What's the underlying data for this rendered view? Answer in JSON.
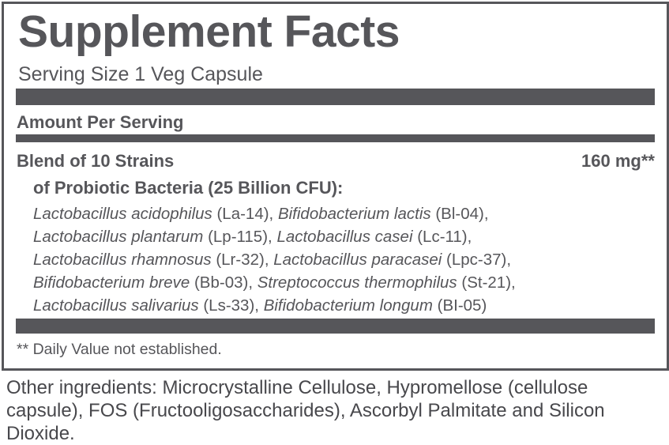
{
  "title": "Supplement Facts",
  "serving_size": "Serving Size 1 Veg Capsule",
  "amount_header": "Amount Per Serving",
  "blend": {
    "name": "Blend of 10 Strains",
    "amount": "160 mg**",
    "subtitle": "of Probiotic Bacteria (25 Billion CFU):"
  },
  "strain_lines": [
    [
      {
        "t": "Lactobacillus acidophilus",
        "i": true
      },
      {
        "t": " (La-14), ",
        "i": false
      },
      {
        "t": "Bifidobacterium lactis",
        "i": true
      },
      {
        "t": " (Bl-04),",
        "i": false
      }
    ],
    [
      {
        "t": "Lactobacillus plantarum",
        "i": true
      },
      {
        "t": " (Lp-115), ",
        "i": false
      },
      {
        "t": "Lactobacillus casei",
        "i": true
      },
      {
        "t": " (Lc-11),",
        "i": false
      }
    ],
    [
      {
        "t": "Lactobacillus rhamnosus",
        "i": true
      },
      {
        "t": " (Lr-32), ",
        "i": false
      },
      {
        "t": "Lactobacillus paracasei",
        "i": true
      },
      {
        "t": " (Lpc-37),",
        "i": false
      }
    ],
    [
      {
        "t": "Bifidobacterium breve",
        "i": true
      },
      {
        "t": " (Bb-03), ",
        "i": false
      },
      {
        "t": "Streptococcus thermophilus",
        "i": true
      },
      {
        "t": " (St-21),",
        "i": false
      }
    ],
    [
      {
        "t": "Lactobacillus salivarius",
        "i": true
      },
      {
        "t": " (Ls-33), ",
        "i": false
      },
      {
        "t": "Bifidobacterium longum",
        "i": true
      },
      {
        "t": " (BI-05)",
        "i": false
      }
    ]
  ],
  "footnote": "** Daily Value not established.",
  "other_ingredients": "Other ingredients: Microcrystalline Cellulose, Hypromellose (cellulose capsule), FOS (Fructooligosaccharides), Ascorbyl Palmitate and Silicon Dioxide.",
  "colors": {
    "text": "#56565a",
    "bar": "#56565a"
  }
}
